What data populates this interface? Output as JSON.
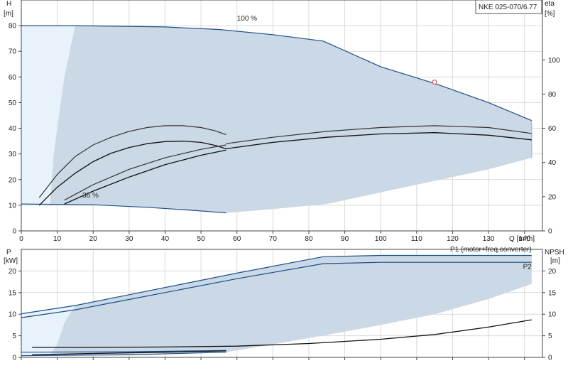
{
  "legend_box": "NKE 025-070/6.77",
  "chart_data": [
    {
      "type": "line",
      "name": "head-efficiency",
      "x": {
        "label": "Q [m³/h]",
        "min": 0,
        "max": 145,
        "ticks": [
          0,
          10,
          20,
          30,
          40,
          50,
          60,
          70,
          80,
          90,
          100,
          110,
          120,
          130,
          140
        ]
      },
      "y_left": {
        "label_top": "H",
        "label_unit": "[m]",
        "min": 0,
        "max": 90,
        "ticks": [
          0,
          10,
          20,
          30,
          40,
          50,
          60,
          70,
          80
        ]
      },
      "y_right": {
        "label_top": "eta",
        "label_unit": "[%]",
        "min": 0,
        "max": 135,
        "ticks": [
          0,
          20,
          40,
          60,
          80,
          100
        ]
      },
      "grid": true,
      "annotations": [
        {
          "text": "100 %",
          "x": 60,
          "y": 82
        },
        {
          "text": "36 %",
          "x": 17,
          "y": 13
        }
      ],
      "operating_point": {
        "x": 115,
        "y": 58
      },
      "series": [
        {
          "role": "hq-max",
          "color": "#1a4f8b",
          "points": [
            [
              0,
              80
            ],
            [
              15,
              80
            ],
            [
              40,
              79.5
            ],
            [
              55,
              78.5
            ],
            [
              70,
              76.5
            ],
            [
              84,
              74
            ],
            [
              100,
              64
            ],
            [
              115,
              57.5
            ],
            [
              130,
              50
            ],
            [
              142,
              43
            ]
          ]
        },
        {
          "role": "hq-min",
          "color": "#1a4f8b",
          "points": [
            [
              0,
              10.5
            ],
            [
              20,
              10.2
            ],
            [
              35,
              9.2
            ],
            [
              48,
              8
            ],
            [
              57,
              7
            ]
          ]
        },
        {
          "role": "envelope-right",
          "color": "#9fb8d1",
          "points": [
            [
              142,
              43
            ],
            [
              142,
              28.5
            ]
          ]
        },
        {
          "role": "eff-low-outer",
          "color": "#333333",
          "points": [
            [
              5,
              13
            ],
            [
              10,
              22
            ],
            [
              15,
              29
            ],
            [
              20,
              33.5
            ],
            [
              25,
              36.5
            ],
            [
              30,
              38.8
            ],
            [
              35,
              40.3
            ],
            [
              40,
              41
            ],
            [
              45,
              41
            ],
            [
              50,
              40.3
            ],
            [
              54,
              39
            ],
            [
              57,
              37.5
            ]
          ]
        },
        {
          "role": "eff-low-inner",
          "color": "#111111",
          "points": [
            [
              5,
              10
            ],
            [
              10,
              17
            ],
            [
              15,
              22.5
            ],
            [
              20,
              27
            ],
            [
              25,
              30.3
            ],
            [
              30,
              32.5
            ],
            [
              35,
              34
            ],
            [
              40,
              34.8
            ],
            [
              45,
              35
            ],
            [
              50,
              34.5
            ],
            [
              54,
              33.3
            ],
            [
              57,
              32
            ]
          ]
        },
        {
          "role": "eff-mid-outer",
          "color": "#333333",
          "points": [
            [
              12,
              12
            ],
            [
              20,
              18
            ],
            [
              30,
              24
            ],
            [
              40,
              28.5
            ],
            [
              50,
              31.8
            ],
            [
              57,
              33.5
            ]
          ]
        },
        {
          "role": "eff-mid-inner",
          "color": "#111111",
          "points": [
            [
              12,
              10.5
            ],
            [
              20,
              15.5
            ],
            [
              30,
              21
            ],
            [
              40,
              25.8
            ],
            [
              50,
              29.5
            ],
            [
              57,
              31.5
            ]
          ]
        },
        {
          "role": "eff-100-outer",
          "color": "#333333",
          "points": [
            [
              57,
              34
            ],
            [
              70,
              36.5
            ],
            [
              85,
              38.8
            ],
            [
              100,
              40.3
            ],
            [
              115,
              41
            ],
            [
              130,
              40.3
            ],
            [
              142,
              38
            ]
          ]
        },
        {
          "role": "eff-100-inner",
          "color": "#111111",
          "points": [
            [
              57,
              32
            ],
            [
              70,
              34.5
            ],
            [
              85,
              36.5
            ],
            [
              100,
              37.8
            ],
            [
              115,
              38.3
            ],
            [
              130,
              37.3
            ],
            [
              142,
              35.5
            ]
          ]
        }
      ],
      "shaded_region": {
        "color": "#cbd8e5",
        "light_band_color": "#e8f2fb",
        "lower_boundary": [
          [
            0,
            10.5
          ],
          [
            20,
            10.2
          ],
          [
            35,
            9.2
          ],
          [
            48,
            8
          ],
          [
            57,
            7
          ],
          [
            70,
            8.5
          ],
          [
            85,
            10.5
          ],
          [
            100,
            15
          ],
          [
            115,
            19.5
          ],
          [
            130,
            24
          ],
          [
            142,
            28.5
          ]
        ],
        "light_band_edge": [
          [
            0,
            80
          ],
          [
            15,
            80
          ],
          [
            12,
            60
          ],
          [
            10,
            40
          ],
          [
            9,
            30
          ],
          [
            8,
            10.3
          ]
        ]
      }
    },
    {
      "type": "line",
      "name": "power-npsh",
      "x": {
        "min": 0,
        "max": 145,
        "ticks": [
          0,
          10,
          20,
          30,
          40,
          50,
          60,
          70,
          80,
          90,
          100,
          110,
          120,
          130,
          140
        ]
      },
      "y_left": {
        "label_top": "P",
        "label_unit": "[kW]",
        "min": 0,
        "max": 25,
        "ticks": [
          0,
          5,
          10,
          15,
          20
        ]
      },
      "y_right": {
        "label_top": "NPSH",
        "label_unit": "[m]",
        "min": 0,
        "max": 25,
        "ticks": [
          0,
          5,
          10,
          15,
          20
        ]
      },
      "grid": true,
      "annotations": [
        {
          "text": "P1 (motor+freq.converter)",
          "x": 142,
          "y": 24.5
        },
        {
          "text": "P2",
          "x": 142,
          "y": 20.5
        }
      ],
      "series": [
        {
          "name": "P1 (motor+freq.converter)",
          "color": "#1a4f8b",
          "points": [
            [
              0,
              10.1
            ],
            [
              15,
              12
            ],
            [
              30,
              14.5
            ],
            [
              45,
              17
            ],
            [
              60,
              19.5
            ],
            [
              84,
              23.3
            ],
            [
              100,
              23.6
            ],
            [
              142,
              23.6
            ]
          ]
        },
        {
          "name": "P2",
          "color": "#1a4f8b",
          "points": [
            [
              0,
              9.2
            ],
            [
              15,
              11
            ],
            [
              30,
              13.4
            ],
            [
              45,
              15.8
            ],
            [
              60,
              18.2
            ],
            [
              84,
              21.7
            ],
            [
              100,
              22
            ],
            [
              142,
              22
            ]
          ]
        },
        {
          "role": "p-min-upper",
          "color": "#1a4f8b",
          "points": [
            [
              0,
              1.2
            ],
            [
              30,
              1.3
            ],
            [
              57,
              1.6
            ]
          ]
        },
        {
          "role": "p-min-lower",
          "color": "#1a4f8b",
          "points": [
            [
              0,
              0.4
            ],
            [
              30,
              0.6
            ],
            [
              57,
              1.2
            ]
          ]
        },
        {
          "role": "npsh",
          "color": "#111111",
          "points": [
            [
              3,
              2.3
            ],
            [
              20,
              2.3
            ],
            [
              40,
              2.4
            ],
            [
              60,
              2.6
            ],
            [
              80,
              3.2
            ],
            [
              100,
              4.2
            ],
            [
              115,
              5.3
            ],
            [
              130,
              7
            ],
            [
              142,
              8.7
            ]
          ]
        },
        {
          "role": "npsh-low",
          "color": "#111111",
          "points": [
            [
              3,
              0.6
            ],
            [
              20,
              0.9
            ],
            [
              40,
              1.2
            ],
            [
              57,
              1.5
            ]
          ]
        }
      ],
      "shaded_region": {
        "color": "#cbd8e5",
        "light_band_color": "#e8f2fb",
        "lower_boundary": [
          [
            0,
            0.4
          ],
          [
            30,
            0.6
          ],
          [
            57,
            1.2
          ],
          [
            70,
            3
          ],
          [
            85,
            5.2
          ],
          [
            100,
            7.5
          ],
          [
            115,
            10
          ],
          [
            130,
            13.5
          ],
          [
            142,
            17
          ]
        ],
        "light_band_edge": [
          [
            0,
            10.1
          ],
          [
            15,
            12
          ],
          [
            12,
            8
          ],
          [
            10,
            3
          ],
          [
            8,
            0.5
          ]
        ]
      }
    }
  ]
}
